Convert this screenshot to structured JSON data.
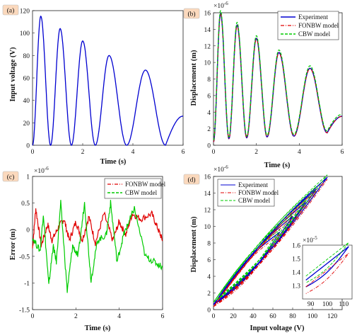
{
  "chart_data": [
    {
      "type": "line",
      "panel": "(a)",
      "xlabel": "Time (s)",
      "ylabel": "Input voltage (V)",
      "xlim": [
        0,
        6
      ],
      "ylim": [
        0,
        120
      ],
      "xticks": [
        0,
        2,
        4,
        6
      ],
      "yticks": [
        0,
        20,
        40,
        60,
        80,
        100,
        120
      ],
      "y_multiplier": "",
      "grid": false,
      "legend_position": "none",
      "peaks": [
        {
          "t": 0.33,
          "v": 115
        },
        {
          "t": 1.1,
          "v": 104
        },
        {
          "t": 2.0,
          "v": 93
        },
        {
          "t": 3.05,
          "v": 80
        },
        {
          "t": 4.5,
          "v": 67
        }
      ],
      "troughs": [
        0.0,
        0.72,
        1.55,
        2.5,
        3.75,
        5.3
      ],
      "end_value": 26,
      "series": [
        {
          "name": "",
          "color": "#0000d0",
          "style": "solid"
        }
      ]
    },
    {
      "type": "line",
      "panel": "(b)",
      "xlabel": "Time (s)",
      "ylabel": "Displacement (m)",
      "xlim": [
        0,
        6
      ],
      "ylim": [
        0,
        1.6e-05
      ],
      "xticks": [
        0,
        2,
        4,
        6
      ],
      "yticks": [
        0,
        2,
        4,
        6,
        8,
        10,
        12,
        14,
        16
      ],
      "y_multiplier": "×10",
      "y_multiplier_exp": "-6",
      "grid": false,
      "legend_position": "top-right",
      "peaks_e6": [
        15.9,
        14.5,
        12.9,
        11.2,
        9.3
      ],
      "troughs_e6": [
        0.4,
        0.8,
        0.9,
        1.0,
        1.1,
        1.5
      ],
      "end_value_e6": 3.5,
      "series": [
        {
          "name": "Experiment",
          "color": "#0000d0",
          "style": "solid"
        },
        {
          "name": "FONBW model",
          "color": "#e00000",
          "style": "dashdot"
        },
        {
          "name": "CBW model",
          "color": "#00cc00",
          "style": "dashed"
        }
      ]
    },
    {
      "type": "line",
      "panel": "(c)",
      "xlabel": "Time (s)",
      "ylabel": "Error (m)",
      "xlim": [
        0,
        6
      ],
      "ylim": [
        -1.5e-06,
        1e-06
      ],
      "xticks": [
        0,
        2,
        4,
        6
      ],
      "yticks": [
        -1.5,
        -1,
        -0.5,
        0,
        0.5,
        1
      ],
      "y_multiplier": "×10",
      "y_multiplier_exp": "-6",
      "grid": false,
      "legend_position": "top-right",
      "series": [
        {
          "name": "FONBW model",
          "color": "#e00000",
          "style": "dashdot",
          "key_points_e6": [
            [
              0,
              -0.35
            ],
            [
              0.15,
              0.4
            ],
            [
              0.4,
              -0.3
            ],
            [
              0.7,
              0.1
            ],
            [
              0.9,
              -0.2
            ],
            [
              1.2,
              0.05
            ],
            [
              1.45,
              0.2
            ],
            [
              1.7,
              -0.2
            ],
            [
              2.0,
              0.15
            ],
            [
              2.3,
              -0.2
            ],
            [
              2.6,
              0.25
            ],
            [
              2.9,
              -0.25
            ],
            [
              3.3,
              0.3
            ],
            [
              3.7,
              -0.2
            ],
            [
              4.0,
              0.15
            ],
            [
              4.3,
              -0.1
            ],
            [
              4.6,
              0.3
            ],
            [
              5.0,
              0.2
            ],
            [
              5.5,
              0.3
            ],
            [
              5.8,
              0.0
            ],
            [
              6.0,
              -0.2
            ]
          ]
        },
        {
          "name": "CBW model",
          "color": "#00cc00",
          "style": "dashed",
          "key_points_e6": [
            [
              0,
              -0.15
            ],
            [
              0.35,
              -0.4
            ],
            [
              0.5,
              0.3
            ],
            [
              0.75,
              -1.05
            ],
            [
              0.95,
              -0.3
            ],
            [
              1.1,
              -0.6
            ],
            [
              1.3,
              0.5
            ],
            [
              1.6,
              -1.15
            ],
            [
              1.85,
              -0.3
            ],
            [
              2.1,
              -0.5
            ],
            [
              2.4,
              0.5
            ],
            [
              2.7,
              -0.95
            ],
            [
              3.0,
              -0.2
            ],
            [
              3.4,
              -0.1
            ],
            [
              3.6,
              0.5
            ],
            [
              3.9,
              -0.6
            ],
            [
              4.2,
              -0.1
            ],
            [
              4.4,
              0.1
            ],
            [
              4.7,
              0.4
            ],
            [
              5.2,
              -0.5
            ],
            [
              5.6,
              -0.6
            ],
            [
              6.0,
              -0.7
            ]
          ]
        }
      ]
    },
    {
      "type": "line",
      "panel": "(d)",
      "xlabel": "Input voltage (V)",
      "ylabel": "Displacement (m)",
      "xlim": [
        0,
        130
      ],
      "ylim": [
        0,
        1.6e-05
      ],
      "xticks": [
        0,
        20,
        40,
        60,
        80,
        100,
        120
      ],
      "yticks": [
        0,
        2,
        4,
        6,
        8,
        10,
        12,
        14,
        16
      ],
      "y_multiplier": "×10",
      "y_multiplier_exp": "-6",
      "grid": false,
      "legend_position": "top-left",
      "loop_tips": [
        {
          "v": 115,
          "d_e6": 15.9
        },
        {
          "v": 104,
          "d_e6": 14.5
        },
        {
          "v": 93,
          "d_e6": 12.9
        },
        {
          "v": 80,
          "d_e6": 11.2
        },
        {
          "v": 67,
          "d_e6": 9.3
        }
      ],
      "series": [
        {
          "name": "Experiment",
          "color": "#0000d0",
          "style": "solid"
        },
        {
          "name": "FONBW model",
          "color": "#e00000",
          "style": "dashdot"
        },
        {
          "name": "CBW model",
          "color": "#00cc00",
          "style": "dashed"
        }
      ],
      "inset": {
        "xlim": [
          85,
          115
        ],
        "ylim": [
          1.2e-05,
          1.6e-05
        ],
        "xticks": [
          90,
          100,
          110
        ],
        "yticks": [
          1.3,
          1.4,
          1.5,
          1.6
        ],
        "y_multiplier": "×10",
        "y_multiplier_exp": "-5"
      }
    }
  ]
}
